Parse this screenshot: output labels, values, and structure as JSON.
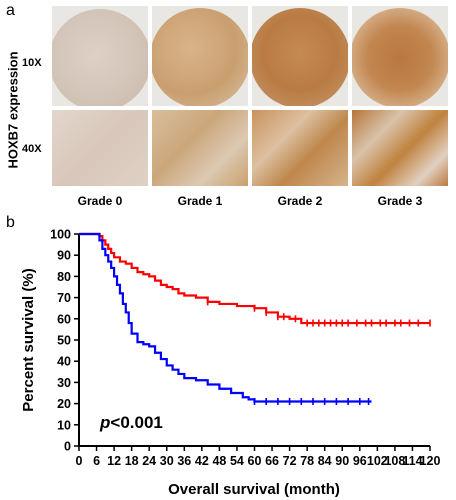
{
  "panel_a": {
    "letter": "a",
    "ylabel": "HOXB7 expression",
    "magnifications": [
      "10X",
      "40X"
    ],
    "grades": [
      "Grade 0",
      "Grade 1",
      "Grade 2",
      "Grade 3"
    ]
  },
  "chart_data": {
    "panel_letter": "b",
    "type": "line",
    "step": true,
    "xlabel": "Overall survival (month)",
    "ylabel": "Percent survival (%)",
    "xlim": [
      0,
      120
    ],
    "ylim": [
      0,
      100
    ],
    "xticks": [
      0,
      6,
      12,
      18,
      24,
      30,
      36,
      42,
      48,
      54,
      60,
      66,
      72,
      78,
      84,
      90,
      96,
      102,
      108,
      114,
      120
    ],
    "yticks": [
      0,
      10,
      20,
      30,
      40,
      50,
      60,
      70,
      80,
      90,
      100
    ],
    "annotation_italic": "p",
    "annotation_rest": "<0.001",
    "series": [
      {
        "color": "#ff0000",
        "x": [
          0,
          6,
          7,
          8,
          9,
          10,
          11,
          12,
          14,
          16,
          18,
          20,
          22,
          24,
          26,
          28,
          30,
          32,
          34,
          36,
          40,
          44,
          48,
          54,
          60,
          64,
          68,
          72,
          76,
          120
        ],
        "y": [
          100,
          100,
          99,
          97,
          95,
          93,
          91,
          89,
          87,
          86,
          84,
          82,
          81,
          80,
          78,
          76,
          75,
          74,
          72,
          71,
          70,
          68,
          67,
          66,
          65,
          63,
          61,
          60,
          58,
          58
        ],
        "censor_x": [
          44,
          60,
          64,
          68,
          70,
          74,
          78,
          80,
          82,
          84,
          86,
          88,
          90,
          92,
          95,
          98,
          100,
          103,
          105,
          108,
          110,
          113,
          116,
          120
        ]
      },
      {
        "color": "#0000ff",
        "x": [
          0,
          6,
          7,
          8,
          9,
          10,
          11,
          12,
          13,
          14,
          15,
          16,
          17,
          18,
          20,
          22,
          24,
          26,
          28,
          30,
          32,
          34,
          36,
          40,
          44,
          48,
          52,
          56,
          58,
          60,
          100
        ],
        "y": [
          100,
          100,
          97,
          93,
          90,
          87,
          84,
          80,
          76,
          72,
          67,
          63,
          58,
          53,
          49,
          48,
          47,
          44,
          41,
          38,
          36,
          34,
          32,
          31,
          29,
          27,
          25,
          23,
          22,
          21,
          21
        ],
        "censor_x": [
          60,
          64,
          68,
          72,
          76,
          80,
          84,
          88,
          92,
          96,
          99
        ]
      }
    ]
  }
}
